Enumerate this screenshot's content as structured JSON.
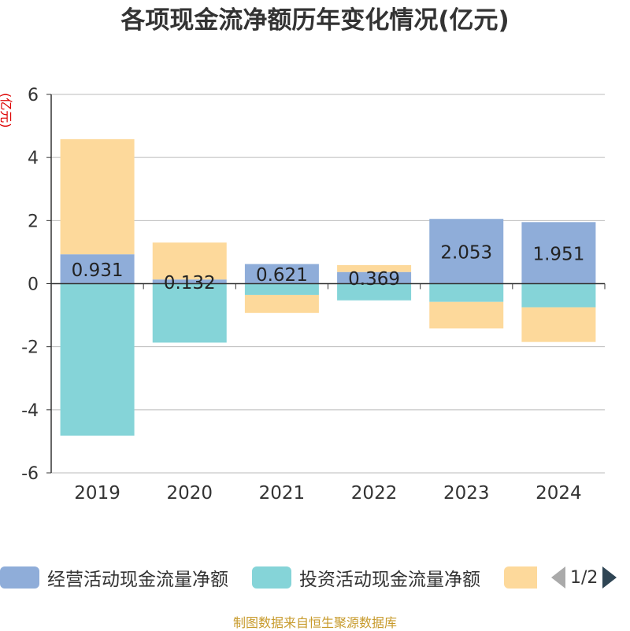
{
  "title": "各项现金流净额历年变化情况(亿元)",
  "ylabel": "(亿元)",
  "colors": {
    "operating": "#8fadd9",
    "investing": "#85d4d8",
    "financing": "#fdd99b",
    "axis": "#333333",
    "grid": "#bbbbbb",
    "ylabel": "#dd0000"
  },
  "chart_data": {
    "type": "bar",
    "stacked": true,
    "categories": [
      "2019",
      "2020",
      "2021",
      "2022",
      "2023",
      "2024"
    ],
    "ylim": [
      -6,
      6
    ],
    "yticks": [
      "6",
      "4",
      "2",
      "0",
      "-2",
      "-4",
      "-6"
    ],
    "grid": true,
    "series": [
      {
        "name": "经营活动现金流量净额",
        "values": [
          0.931,
          0.132,
          0.621,
          0.369,
          2.053,
          1.951
        ],
        "labels": [
          "0.931",
          "0.132",
          "0.621",
          "0.369",
          "2.053",
          "1.951"
        ]
      },
      {
        "name": "投资活动现金流量净额",
        "values": [
          -4.82,
          -1.87,
          -0.36,
          -0.53,
          -0.58,
          -0.75
        ]
      },
      {
        "values": [
          3.65,
          1.17,
          -0.57,
          0.22,
          -0.84,
          -1.1
        ]
      }
    ]
  },
  "legend": {
    "items": [
      "经营活动现金流量净额",
      "投资活动现金流量净额",
      ""
    ],
    "page": "1/2"
  },
  "footer": "制图数据来自恒生聚源数据库"
}
